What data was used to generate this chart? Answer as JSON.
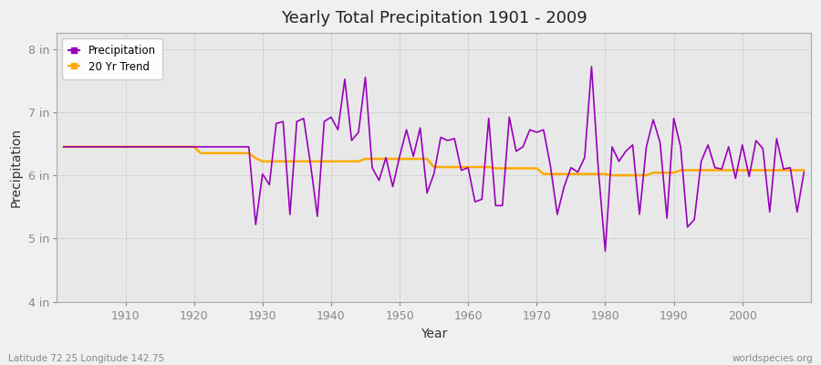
{
  "title": "Yearly Total Precipitation 1901 - 2009",
  "xlabel": "Year",
  "ylabel": "Precipitation",
  "bottom_left_label": "Latitude 72.25 Longitude 142.75",
  "bottom_right_label": "worldspecies.org",
  "precip_color": "#9900bb",
  "trend_color": "#ffaa00",
  "fig_bg_color": "#f0f0f0",
  "plot_bg_color": "#e8e8e8",
  "ylim": [
    4,
    8.25
  ],
  "yticks": [
    4,
    5,
    6,
    7,
    8
  ],
  "ytick_labels": [
    "4 in",
    "5 in",
    "6 in",
    "7 in",
    "8 in"
  ],
  "xlim": [
    1900,
    2010
  ],
  "years": [
    1901,
    1902,
    1903,
    1904,
    1905,
    1906,
    1907,
    1908,
    1909,
    1910,
    1911,
    1912,
    1913,
    1914,
    1915,
    1916,
    1917,
    1918,
    1919,
    1920,
    1921,
    1922,
    1923,
    1924,
    1925,
    1926,
    1927,
    1928,
    1929,
    1930,
    1931,
    1932,
    1933,
    1934,
    1935,
    1936,
    1937,
    1938,
    1939,
    1940,
    1941,
    1942,
    1943,
    1944,
    1945,
    1946,
    1947,
    1948,
    1949,
    1950,
    1951,
    1952,
    1953,
    1954,
    1955,
    1956,
    1957,
    1958,
    1959,
    1960,
    1961,
    1962,
    1963,
    1964,
    1965,
    1966,
    1967,
    1968,
    1969,
    1970,
    1971,
    1972,
    1973,
    1974,
    1975,
    1976,
    1977,
    1978,
    1979,
    1980,
    1981,
    1982,
    1983,
    1984,
    1985,
    1986,
    1987,
    1988,
    1989,
    1990,
    1991,
    1992,
    1993,
    1994,
    1995,
    1996,
    1997,
    1998,
    1999,
    2000,
    2001,
    2002,
    2003,
    2004,
    2005,
    2006,
    2007,
    2008,
    2009
  ],
  "precip": [
    6.45,
    6.45,
    6.45,
    6.45,
    6.45,
    6.45,
    6.45,
    6.45,
    6.45,
    6.45,
    6.45,
    6.45,
    6.45,
    6.45,
    6.45,
    6.45,
    6.45,
    6.45,
    6.45,
    6.45,
    6.45,
    6.45,
    6.45,
    6.45,
    6.45,
    6.45,
    6.45,
    6.45,
    5.22,
    6.02,
    5.85,
    6.82,
    6.85,
    5.38,
    6.85,
    6.9,
    6.18,
    5.35,
    6.85,
    6.92,
    6.72,
    7.52,
    6.55,
    6.68,
    7.55,
    6.12,
    5.92,
    6.28,
    5.82,
    6.3,
    6.72,
    6.3,
    6.75,
    5.72,
    6.02,
    6.6,
    6.55,
    6.58,
    6.08,
    6.12,
    5.58,
    5.62,
    6.9,
    5.52,
    5.52,
    6.92,
    6.38,
    6.45,
    6.72,
    6.68,
    6.72,
    6.15,
    5.38,
    5.82,
    6.12,
    6.05,
    6.28,
    7.72,
    6.08,
    4.8,
    6.45,
    6.22,
    6.38,
    6.48,
    5.38,
    6.45,
    6.88,
    6.52,
    5.32,
    6.9,
    6.45,
    5.18,
    5.3,
    6.22,
    6.48,
    6.12,
    6.1,
    6.45,
    5.95,
    6.48,
    5.98,
    6.55,
    6.42,
    5.42,
    6.58,
    6.1,
    6.12,
    5.42,
    6.05
  ],
  "trend": [
    6.45,
    6.45,
    6.45,
    6.45,
    6.45,
    6.45,
    6.45,
    6.45,
    6.45,
    6.45,
    6.45,
    6.45,
    6.45,
    6.45,
    6.45,
    6.45,
    6.45,
    6.45,
    6.45,
    6.45,
    6.35,
    6.35,
    6.35,
    6.35,
    6.35,
    6.35,
    6.35,
    6.35,
    6.27,
    6.22,
    6.22,
    6.22,
    6.22,
    6.22,
    6.22,
    6.22,
    6.22,
    6.22,
    6.22,
    6.22,
    6.22,
    6.22,
    6.22,
    6.22,
    6.26,
    6.26,
    6.26,
    6.26,
    6.26,
    6.26,
    6.26,
    6.26,
    6.26,
    6.26,
    6.13,
    6.13,
    6.13,
    6.13,
    6.13,
    6.13,
    6.13,
    6.13,
    6.13,
    6.11,
    6.11,
    6.11,
    6.11,
    6.11,
    6.11,
    6.11,
    6.02,
    6.02,
    6.02,
    6.02,
    6.02,
    6.02,
    6.02,
    6.02,
    6.02,
    6.02,
    6.0,
    6.0,
    6.0,
    6.0,
    6.0,
    6.0,
    6.04,
    6.04,
    6.04,
    6.04,
    6.08,
    6.08,
    6.08,
    6.08,
    6.08,
    6.08,
    6.08,
    6.08,
    6.08,
    6.08,
    6.08,
    6.08,
    6.08,
    6.08,
    6.08,
    6.08,
    6.08,
    6.08,
    6.08
  ]
}
